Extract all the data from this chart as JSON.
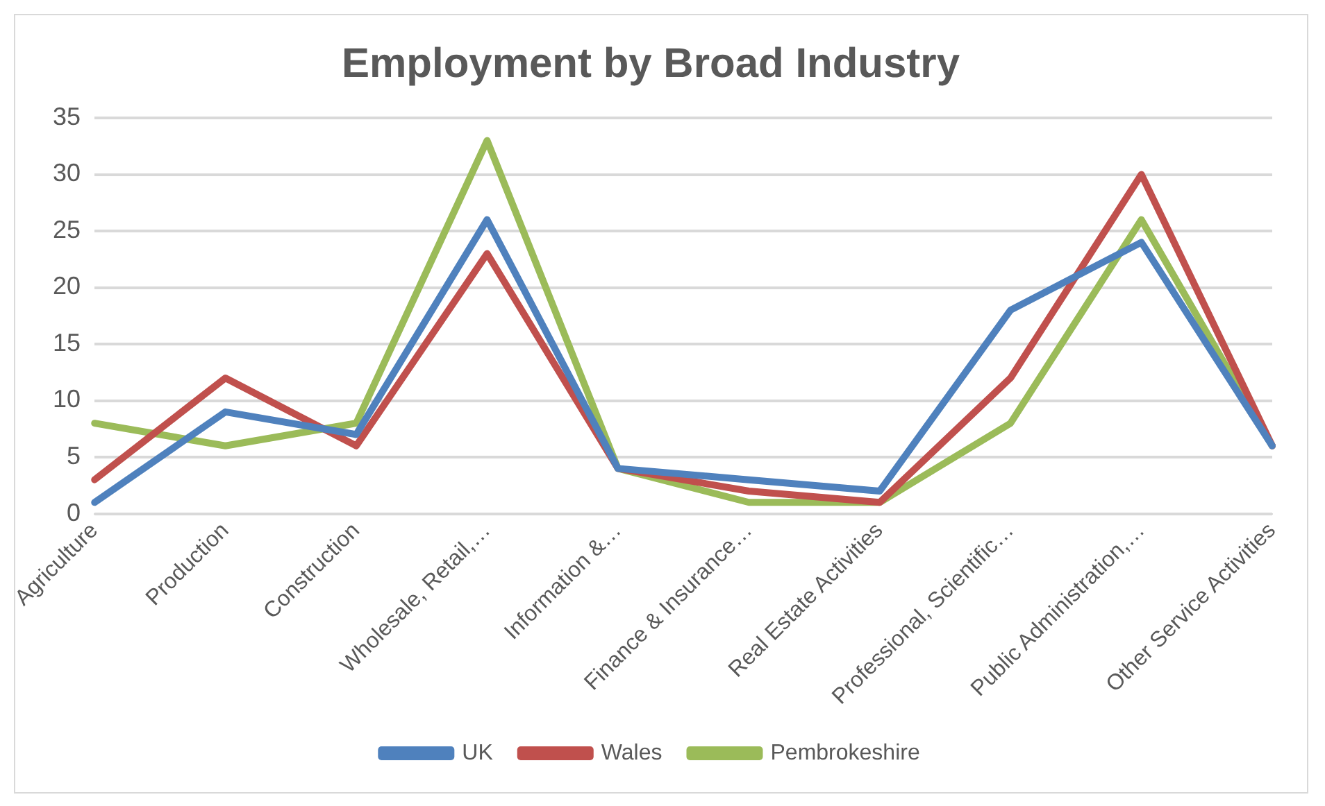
{
  "chart_data": {
    "type": "line",
    "title": "Employment by Broad Industry",
    "categories": [
      "Agriculture",
      "Production",
      "Construction",
      "Wholesale, Retail,…",
      "Information &…",
      "Finance & Insurance…",
      "Real Estate Activities",
      "Professional, Scientific…",
      "Public Administration,…",
      "Other Service Activities"
    ],
    "series": [
      {
        "name": "UK",
        "color": "#4f81bd",
        "values": [
          1,
          9,
          7,
          26,
          4,
          3,
          2,
          18,
          24,
          6
        ]
      },
      {
        "name": "Wales",
        "color": "#c0504d",
        "values": [
          3,
          12,
          6,
          23,
          4,
          2,
          1,
          12,
          30,
          6
        ]
      },
      {
        "name": "Pembrokeshire",
        "color": "#9bbb59",
        "values": [
          8,
          6,
          8,
          33,
          4,
          1,
          1,
          8,
          26,
          6
        ]
      }
    ],
    "ylim": [
      0,
      35
    ],
    "yticks": [
      0,
      5,
      10,
      15,
      20,
      25,
      30,
      35
    ],
    "grid": "y",
    "legend": "bottom",
    "marker": "none",
    "line_style": "solid"
  }
}
